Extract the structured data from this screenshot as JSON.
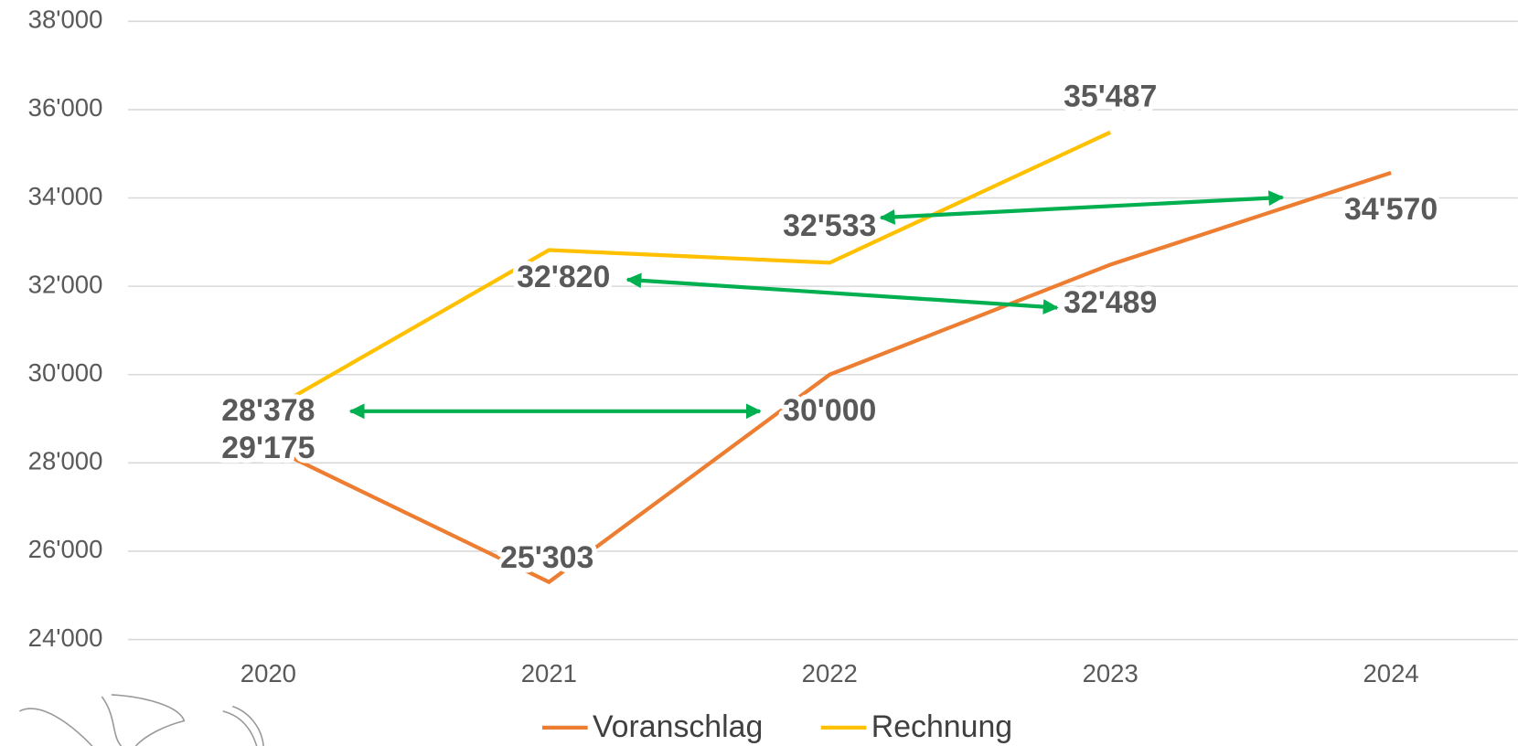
{
  "chart_data": {
    "type": "line",
    "categories": [
      "2020",
      "2021",
      "2022",
      "2023",
      "2024"
    ],
    "series": [
      {
        "name": "Voranschlag",
        "color": "#ed7d31",
        "values": [
          28378,
          25303,
          30000,
          32489,
          34570
        ],
        "value_labels": [
          "28'378",
          "25'303",
          "30'000",
          "32'489",
          "34'570"
        ]
      },
      {
        "name": "Rechnung",
        "color": "#ffc000",
        "values": [
          29175,
          32820,
          32533,
          35487,
          null
        ],
        "value_labels": [
          "29'175",
          "32'820",
          "32'533",
          "35'487",
          null
        ]
      }
    ],
    "ylim": [
      24000,
      38000
    ],
    "yticks": [
      {
        "value": 24000,
        "label": "24'000"
      },
      {
        "value": 26000,
        "label": "26'000"
      },
      {
        "value": 28000,
        "label": "28'000"
      },
      {
        "value": 30000,
        "label": "30'000"
      },
      {
        "value": 32000,
        "label": "32'000"
      },
      {
        "value": 34000,
        "label": "34'000"
      },
      {
        "value": 36000,
        "label": "36'000"
      },
      {
        "value": 38000,
        "label": "38'000"
      }
    ],
    "grid": true,
    "legend": "bottom"
  }
}
